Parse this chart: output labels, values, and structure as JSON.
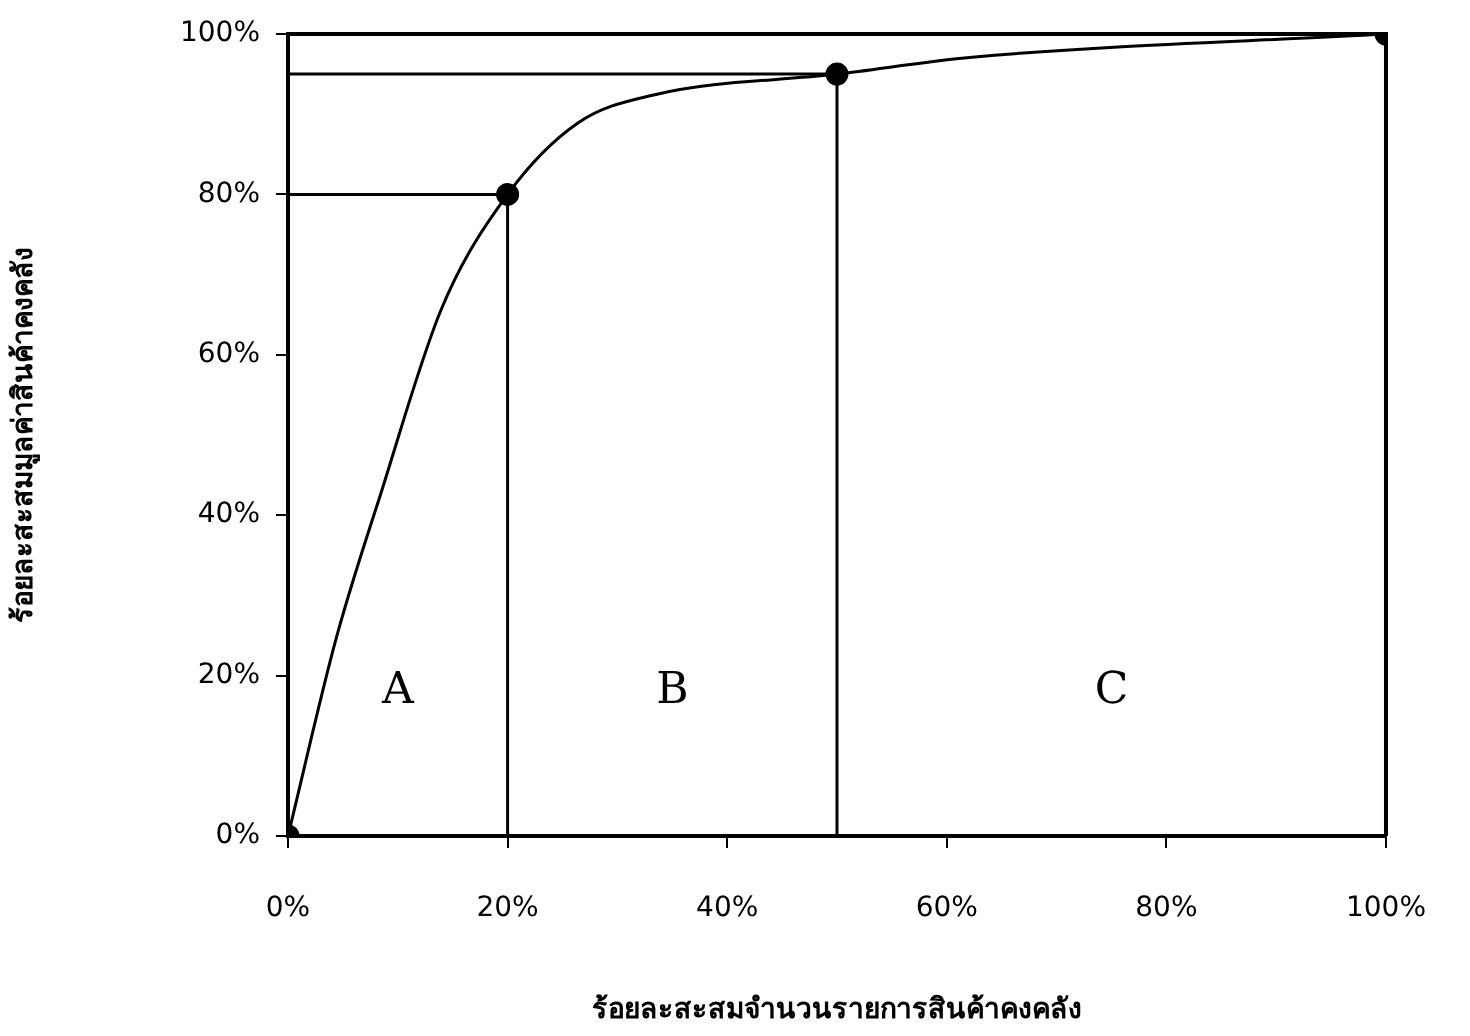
{
  "chart_data": {
    "type": "line",
    "xlabel": "ร้อยละสะสมจำนวนรายการสินค้าคงคลัง",
    "ylabel": "ร้อยละสะสมมูลค่าสินค้าคงคลัง",
    "xlim": [
      0,
      100
    ],
    "ylim": [
      0,
      100
    ],
    "xticks": [
      {
        "value": 0,
        "label": "0%"
      },
      {
        "value": 20,
        "label": "20%"
      },
      {
        "value": 40,
        "label": "40%"
      },
      {
        "value": 60,
        "label": "60%"
      },
      {
        "value": 80,
        "label": "80%"
      },
      {
        "value": 100,
        "label": "100%"
      }
    ],
    "yticks": [
      {
        "value": 0,
        "label": "0%"
      },
      {
        "value": 20,
        "label": "20%"
      },
      {
        "value": 40,
        "label": "40%"
      },
      {
        "value": 60,
        "label": "60%"
      },
      {
        "value": 80,
        "label": "80%"
      },
      {
        "value": 100,
        "label": "100%"
      }
    ],
    "grid": false,
    "legend": false,
    "series": [
      {
        "color": "#000000",
        "marker": "none",
        "x": [
          0,
          4.4,
          8.5,
          14,
          20,
          26.4,
          33.3,
          50,
          62.3,
          100
        ],
        "values": [
          0,
          24.7,
          42.9,
          65.8,
          80,
          88.9,
          92.4,
          95,
          97.1,
          100
        ]
      },
      {
        "type": "scatter",
        "color": "#000000",
        "marker": "circle",
        "x": [
          0,
          20,
          50,
          100
        ],
        "values": [
          0,
          80,
          95,
          100
        ]
      },
      {
        "color": "#000000",
        "marker": "none",
        "x": [
          0,
          20,
          20
        ],
        "values": [
          80,
          80,
          0
        ]
      },
      {
        "color": "#000000",
        "marker": "none",
        "x": [
          0,
          50,
          50
        ],
        "values": [
          95,
          95,
          0
        ]
      }
    ],
    "annotations": [
      "A",
      "B",
      "C"
    ]
  }
}
